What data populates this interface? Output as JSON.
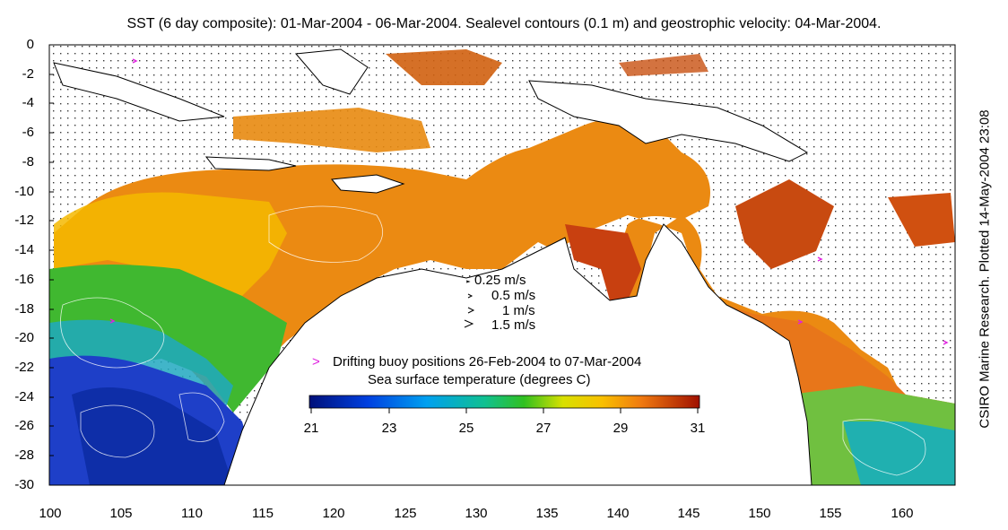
{
  "title": "SST (6 day composite): 01-Mar-2004 - 06-Mar-2004. Sealevel contours (0.1 m) and geostrophic velocity: 04-Mar-2004.",
  "side_credit": "CSIRO Marine Research. Plotted 14-May-2004 23:08",
  "y_ticks": [
    "0",
    "-2",
    "-4",
    "-6",
    "-8",
    "-10",
    "-12",
    "-14",
    "-16",
    "-18",
    "-20",
    "-22",
    "-24",
    "-26",
    "-28",
    "-30"
  ],
  "x_ticks": [
    "100",
    "105",
    "110",
    "115",
    "120",
    "125",
    "130",
    "135",
    "140",
    "145",
    "150",
    "155",
    "160"
  ],
  "velocity_legend": [
    "0.25 m/s",
    "0.5 m/s",
    "1 m/s",
    "1.5 m/s"
  ],
  "buoy_legend": "Drifting buoy positions 26-Feb-2004 to 07-Mar-2004",
  "colorbar_title": "Sea surface temperature (degrees C)",
  "colorbar_ticks": [
    "21",
    "23",
    "25",
    "27",
    "29",
    "31"
  ],
  "colors": {
    "ocean_warm": "#e87a10",
    "land": "#ffffff",
    "cool": "#1040c0",
    "buoy": "#e020e0"
  }
}
